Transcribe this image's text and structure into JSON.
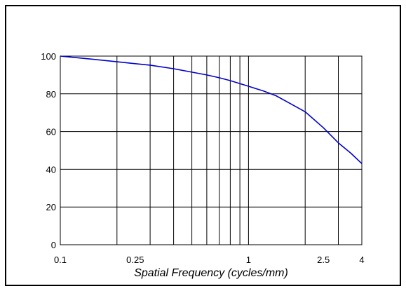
{
  "chart_data": {
    "type": "line",
    "title": "",
    "xlabel": "Spatial Frequency (cycles/mm)",
    "ylabel": "",
    "x_scale": "log",
    "xlim": [
      0.1,
      4
    ],
    "ylim": [
      0,
      100
    ],
    "x_ticks": [
      0.1,
      0.25,
      1,
      2.5,
      4
    ],
    "x_tick_labels": [
      "0.1",
      "0.25",
      "1",
      "2.5",
      "4"
    ],
    "x_gridlines": [
      0.1,
      0.2,
      0.3,
      0.4,
      0.5,
      0.6,
      0.7,
      0.8,
      0.9,
      1,
      2,
      3,
      4
    ],
    "y_ticks": [
      0,
      20,
      40,
      60,
      80,
      100
    ],
    "y_tick_labels": [
      "0",
      "20",
      "40",
      "60",
      "80",
      "100"
    ],
    "grid": true,
    "series": [
      {
        "color": "#0000cc",
        "x": [
          0.1,
          0.14,
          0.2,
          0.25,
          0.3,
          0.4,
          0.5,
          0.6,
          0.7,
          0.8,
          1.0,
          1.2,
          1.4,
          1.6,
          2.0,
          2.5,
          3.0,
          3.5,
          4.0
        ],
        "y": [
          100,
          98.6,
          97.0,
          96.0,
          95.2,
          93.3,
          91.5,
          90.0,
          88.5,
          87.0,
          84.0,
          81.5,
          79.0,
          75.8,
          70.5,
          62.0,
          54.0,
          48.5,
          43.0
        ]
      }
    ]
  }
}
